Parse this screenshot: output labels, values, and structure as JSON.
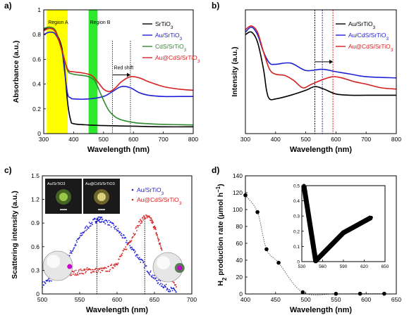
{
  "colors": {
    "black": "#000000",
    "blue": "#1f1fd6",
    "green": "#2e8b2e",
    "red": "#d62020",
    "yellow": "#ffff00",
    "bright_green": "#2ee82e"
  },
  "chart_data": [
    {
      "panel_label": "a)",
      "type": "line",
      "xlabel": "Wavelength (nm)",
      "ylabel": "Absorbance (a.u.)",
      "xlim": [
        300,
        800
      ],
      "ylim": [
        0,
        1.0
      ],
      "xticks": [
        300,
        400,
        500,
        600,
        700,
        800
      ],
      "yticks": [
        0,
        0.2,
        0.4,
        0.6,
        0.8,
        1.0
      ],
      "xtick_labels": [
        "300",
        "400",
        "500",
        "600",
        "700",
        "800"
      ],
      "ytick_labels": [
        "0",
        "0.2",
        "0.4",
        "0.6",
        "0.8",
        "1"
      ],
      "regions": [
        {
          "label": "Region A",
          "x": [
            310,
            380
          ],
          "color": "#ffff00"
        },
        {
          "label": "Region B",
          "x": [
            450,
            480
          ],
          "color": "#2ee82e"
        }
      ],
      "vlines": [
        530,
        590
      ],
      "annotation": {
        "text": "Red shift",
        "x_from": 530,
        "x_to": 590,
        "y": 0.52
      },
      "legend": [
        {
          "text": "SrTiO",
          "sub": "3",
          "color": "#000000"
        },
        {
          "text": "Au/SrTiO",
          "sub": "3",
          "color": "#1f1fd6"
        },
        {
          "text": "CdS/SrTiO",
          "sub": "3",
          "color": "#2e8b2e"
        },
        {
          "text": "Au@CdS/SrTiO",
          "sub": "3",
          "color": "#d62020"
        }
      ],
      "series": [
        {
          "name": "SrTiO3",
          "color": "#000000",
          "x": [
            300,
            320,
            340,
            360,
            370,
            380,
            390,
            400,
            450,
            500,
            600,
            700,
            800
          ],
          "y": [
            0.84,
            0.86,
            0.82,
            0.7,
            0.52,
            0.25,
            0.11,
            0.08,
            0.07,
            0.065,
            0.06,
            0.055,
            0.055
          ]
        },
        {
          "name": "Au/SrTiO3",
          "color": "#1f1fd6",
          "x": [
            300,
            320,
            340,
            360,
            370,
            380,
            390,
            400,
            450,
            500,
            530,
            560,
            590,
            620,
            650,
            700,
            750,
            800
          ],
          "y": [
            0.8,
            0.82,
            0.8,
            0.68,
            0.5,
            0.32,
            0.29,
            0.28,
            0.28,
            0.3,
            0.34,
            0.38,
            0.37,
            0.33,
            0.31,
            0.3,
            0.3,
            0.3
          ]
        },
        {
          "name": "CdS/SrTiO3",
          "color": "#2e8b2e",
          "x": [
            300,
            320,
            340,
            360,
            380,
            400,
            430,
            450,
            470,
            480,
            500,
            520,
            550,
            600,
            650,
            700,
            800
          ],
          "y": [
            0.85,
            0.86,
            0.83,
            0.68,
            0.51,
            0.48,
            0.47,
            0.46,
            0.43,
            0.38,
            0.27,
            0.18,
            0.12,
            0.09,
            0.08,
            0.075,
            0.07
          ]
        },
        {
          "name": "Au@CdS/SrTiO3",
          "color": "#d62020",
          "x": [
            300,
            320,
            340,
            360,
            380,
            400,
            430,
            460,
            480,
            500,
            520,
            540,
            560,
            590,
            620,
            650,
            700,
            750,
            800
          ],
          "y": [
            0.83,
            0.85,
            0.82,
            0.68,
            0.52,
            0.5,
            0.49,
            0.47,
            0.42,
            0.36,
            0.34,
            0.37,
            0.42,
            0.46,
            0.45,
            0.42,
            0.38,
            0.36,
            0.35
          ]
        }
      ]
    },
    {
      "panel_label": "b)",
      "type": "line",
      "xlabel": "Wavelength (nm)",
      "ylabel": "Intensity (a.u.)",
      "xlim": [
        300,
        800
      ],
      "ylim": [
        0,
        1.0
      ],
      "xticks": [
        300,
        400,
        500,
        600,
        700,
        800
      ],
      "xtick_labels": [
        "300",
        "400",
        "500",
        "600",
        "700",
        "800"
      ],
      "vlines": [
        {
          "x": 530,
          "color": "#000000"
        },
        {
          "x": 555,
          "color": "#1f1fd6"
        },
        {
          "x": 590,
          "color": "#d62020"
        }
      ],
      "legend": [
        {
          "text": "Au/SrTiO",
          "sub": "3",
          "color": "#000000"
        },
        {
          "text": "Au/CdS/SrTiO",
          "sub": "3",
          "color": "#1f1fd6"
        },
        {
          "text": "Au@CdS/SrTiO",
          "sub": "3",
          "color": "#d62020"
        }
      ],
      "series": [
        {
          "name": "Au/SrTiO3",
          "color": "#000000",
          "x": [
            300,
            320,
            340,
            360,
            370,
            380,
            400,
            450,
            500,
            530,
            560,
            600,
            650,
            700,
            800
          ],
          "y": [
            0.8,
            0.82,
            0.74,
            0.52,
            0.35,
            0.28,
            0.28,
            0.31,
            0.35,
            0.38,
            0.36,
            0.32,
            0.31,
            0.31,
            0.31
          ]
        },
        {
          "name": "Au/CdS/SrTiO3",
          "color": "#1f1fd6",
          "x": [
            300,
            320,
            340,
            360,
            380,
            400,
            450,
            500,
            555,
            600,
            650,
            700,
            800
          ],
          "y": [
            0.82,
            0.86,
            0.8,
            0.66,
            0.57,
            0.56,
            0.57,
            0.51,
            0.52,
            0.5,
            0.48,
            0.46,
            0.45
          ]
        },
        {
          "name": "Au@CdS/SrTiO3",
          "color": "#d62020",
          "x": [
            300,
            320,
            340,
            360,
            380,
            400,
            430,
            460,
            490,
            520,
            560,
            590,
            620,
            660,
            700,
            750,
            800
          ],
          "y": [
            0.84,
            0.87,
            0.82,
            0.66,
            0.52,
            0.48,
            0.47,
            0.43,
            0.37,
            0.4,
            0.44,
            0.46,
            0.45,
            0.42,
            0.4,
            0.37,
            0.36
          ]
        }
      ]
    },
    {
      "panel_label": "c)",
      "type": "scatter",
      "xlabel": "Wavelength (nm)",
      "ylabel": "Scattering intensity (a.u.)",
      "xlim": [
        500,
        700
      ],
      "ylim": [
        0,
        1.5
      ],
      "xticks": [
        500,
        550,
        600,
        650,
        700
      ],
      "yticks": [
        0,
        0.3,
        0.6,
        0.9,
        1.2,
        1.5
      ],
      "xtick_labels": [
        "500",
        "550",
        "600",
        "650",
        "700"
      ],
      "ytick_labels": [
        "0",
        "0.3",
        "0.6",
        "0.9",
        "1.2",
        "1.5"
      ],
      "vlines": [
        573,
        637
      ],
      "insets": [
        {
          "label": "Au/SrTiO3"
        },
        {
          "label": "Au@CdS/SrTiO3"
        }
      ],
      "legend": [
        {
          "text": "Au/SrTiO",
          "sub": "3",
          "color": "#1f1fd6"
        },
        {
          "text": "Au@CdS/SrTiO",
          "sub": "3",
          "color": "#d62020"
        }
      ],
      "series": [
        {
          "name": "Au/SrTiO3",
          "color": "#1f1fd6",
          "x": [
            500,
            510,
            520,
            530,
            540,
            550,
            560,
            570,
            575,
            580,
            590,
            600,
            610,
            620,
            630,
            640,
            650,
            660,
            670,
            680
          ],
          "y": [
            0.12,
            0.18,
            0.25,
            0.4,
            0.55,
            0.72,
            0.85,
            0.93,
            0.95,
            0.94,
            0.9,
            0.82,
            0.7,
            0.58,
            0.45,
            0.32,
            0.2,
            0.12,
            0.06,
            0.03
          ]
        },
        {
          "name": "Au@CdS/SrTiO3",
          "color": "#d62020",
          "x": [
            510,
            520,
            530,
            540,
            550,
            560,
            570,
            580,
            590,
            600,
            610,
            620,
            630,
            637,
            645,
            650,
            655,
            660,
            670,
            680
          ],
          "y": [
            0.2,
            0.22,
            0.24,
            0.26,
            0.28,
            0.3,
            0.3,
            0.3,
            0.32,
            0.4,
            0.55,
            0.72,
            0.9,
            0.98,
            0.95,
            0.85,
            0.7,
            0.55,
            0.25,
            0.1
          ]
        }
      ]
    },
    {
      "panel_label": "d)",
      "type": "line",
      "xlabel": "Wavelength (nm)",
      "ylabel": "H",
      "ylabel_sub": "2",
      "ylabel_rest": " production rate (μmol h",
      "ylabel_sup": "−1",
      "ylabel_end": ")",
      "xlim": [
        400,
        650
      ],
      "ylim": [
        0,
        140
      ],
      "xticks": [
        400,
        450,
        500,
        550,
        600,
        650
      ],
      "yticks": [
        0,
        20,
        40,
        60,
        80,
        100,
        120,
        140
      ],
      "xtick_labels": [
        "400",
        "450",
        "500",
        "550",
        "600",
        "650"
      ],
      "ytick_labels": [
        "0",
        "20",
        "40",
        "60",
        "80",
        "100",
        "120",
        "140"
      ],
      "series": [
        {
          "name": "",
          "color": "#000000",
          "x": [
            400,
            420,
            435,
            455,
            495,
            550,
            590,
            630
          ],
          "y": [
            117,
            97,
            53,
            37,
            2,
            0.2,
            0.3,
            0.3
          ]
        }
      ],
      "inset": {
        "xlim": [
          530,
          650
        ],
        "ylim": [
          0,
          0.5
        ],
        "xticks": [
          530,
          560,
          590,
          620,
          650
        ],
        "yticks": [
          0,
          0.1,
          0.2,
          0.3,
          0.4,
          0.5
        ],
        "xtick_labels": [
          "530",
          "560",
          "590",
          "620",
          "650"
        ],
        "ytick_labels": [
          "0",
          "0.1",
          "0.2",
          "0.3",
          "0.4",
          "0.5"
        ],
        "x": [
          533,
          550,
          590,
          630
        ],
        "y": [
          0.5,
          0.005,
          0.19,
          0.29
        ]
      }
    }
  ]
}
